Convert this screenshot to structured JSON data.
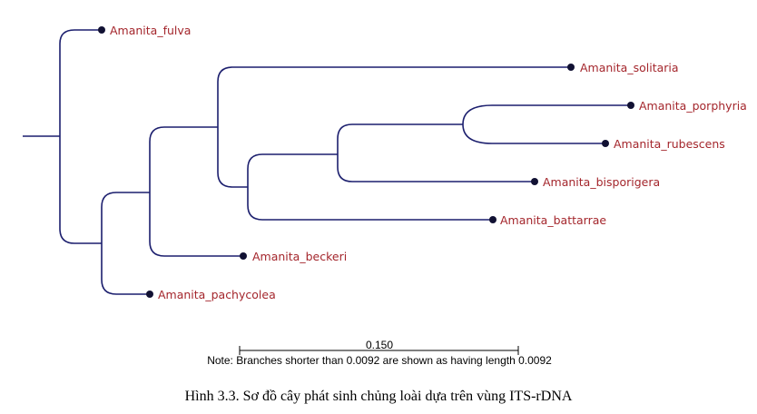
{
  "taxa": [
    "Amanita_fulva",
    "Amanita_solitaria",
    "Amanita_porphyria",
    "Amanita_rubescens",
    "Amanita_bisporigera",
    "Amanita_battarrae",
    "Amanita_beckeri",
    "Amanita_pachycolea"
  ],
  "scale_bar": {
    "length_label": "0.150"
  },
  "note": "Note: Branches shorter than 0.0092 are shown as having length 0.0092",
  "caption": "Hình 3.3. Sơ đồ cây phát sinh chủng loài dựa trên vùng ITS-rDNA",
  "colors": {
    "branch": "#1c1f6e",
    "label": "#a4262c"
  }
}
